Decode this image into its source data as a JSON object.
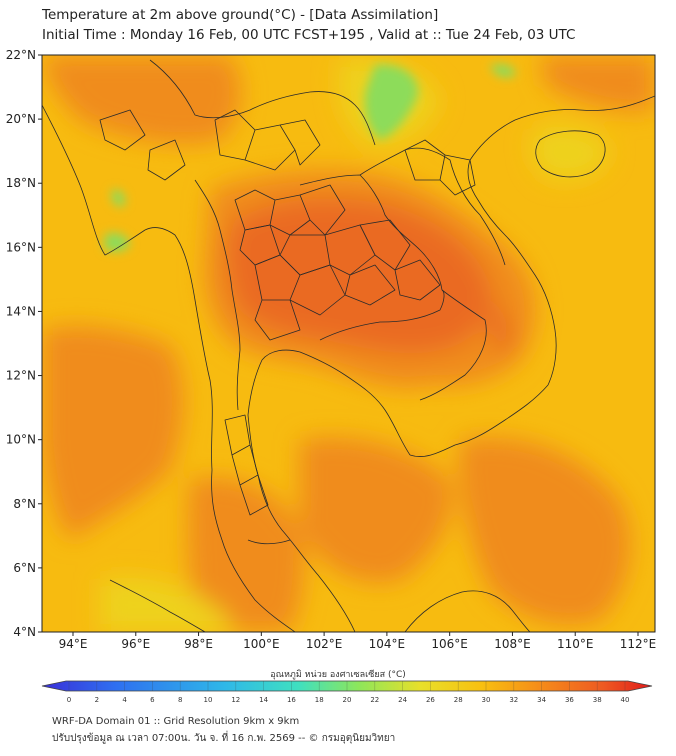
{
  "header": {
    "title_line1": "Temperature at 2m above ground(°C) - [Data Assimilation]",
    "title_line2": "Initial Time : Monday 16 Feb, 00 UTC FCST+195 , Valid at :: Tue 24 Feb, 03 UTC"
  },
  "map": {
    "lat_labels": [
      "22°N",
      "20°N",
      "18°N",
      "16°N",
      "14°N",
      "12°N",
      "10°N",
      "8°N",
      "6°N",
      "4°N"
    ],
    "lon_labels": [
      "94°E",
      "96°E",
      "98°E",
      "100°E",
      "102°E",
      "104°E",
      "106°E",
      "108°E",
      "110°E",
      "112°E"
    ],
    "colors": {
      "base": "#f7bb10",
      "warm": "#f08c1e",
      "hot": "#ea6a22",
      "cool": "#eed21a",
      "green": "#8ddc5a",
      "border": "#2b2b2b"
    }
  },
  "colorbar": {
    "title": "อุณหภูมิ หน่วย องศาเซลเซียส (°C)",
    "tick_labels": [
      "0",
      "2",
      "4",
      "6",
      "8",
      "10",
      "12",
      "14",
      "16",
      "18",
      "20",
      "22",
      "24",
      "26",
      "28",
      "30",
      "32",
      "34",
      "36",
      "38",
      "40"
    ],
    "colors": [
      "#3a2fd8",
      "#2f6ff0",
      "#2fb8e8",
      "#3fe0c0",
      "#8ee65a",
      "#e8e02a",
      "#f8c010",
      "#f58a1a",
      "#ee5a22",
      "#e01a1a"
    ]
  },
  "footer": {
    "line1": "WRF-DA Domain 01 :: Grid Resolution 9km x 9km",
    "line2": "ปรับปรุงข้อมูล ณ เวลา 07:00น. วัน จ. ที่ 16 ก.พ. 2569 -- © กรมอุตุนิยมวิทยา"
  }
}
